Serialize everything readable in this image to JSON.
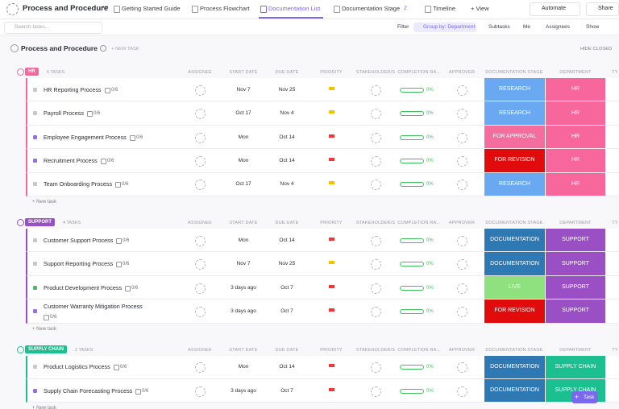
{
  "topbar": {
    "title": "Process and Procedure",
    "more": "•••",
    "tabs": [
      {
        "label": "Getting Started Guide"
      },
      {
        "label": "Process Flowchart"
      },
      {
        "label": "Documentation List",
        "active": true
      },
      {
        "label": "Documentation Stage",
        "badge": "2"
      },
      {
        "label": "Timeline"
      },
      {
        "label": "+ View"
      }
    ],
    "actions": [
      "Automate",
      "Share"
    ]
  },
  "toolbar": {
    "search": "Search tasks...",
    "buttons": [
      "Filter",
      "Group by: Department",
      "Subtasks",
      "Me",
      "Assignees",
      "Show"
    ]
  },
  "list": {
    "title": "Process and Procedure",
    "new_task": "+ NEW TASK",
    "hide_closed": "HIDE CLOSED",
    "columns": [
      "ASSIGNEE",
      "START DATE",
      "DUE DATE",
      "PRIORITY",
      "STAKEHOLDER/S",
      "COMPLETION RA...",
      "APPROVER",
      "DOCUMENTATION STAGE",
      "DEPARTMENT",
      "TY"
    ],
    "groups": [
      {
        "name": "HR",
        "count": "5 TASKS",
        "color": "#f7679b",
        "add_task": "+ New task",
        "tasks": [
          {
            "name": "HR Reporting Process",
            "subtasks": "0/6",
            "start": "Nov 7",
            "due": "Nov 25",
            "priority_color": "#f2c200",
            "completion": "0%",
            "stage": "RESEARCH",
            "stage_color": "#6aa8f2",
            "status_color": "#c8c8c8"
          },
          {
            "name": "Payroll Process",
            "subtasks": "0/6",
            "start": "Oct 17",
            "due": "Nov 4",
            "priority_color": "#f2c200",
            "completion": "0%",
            "stage": "RESEARCH",
            "stage_color": "#6aa8f2",
            "status_color": "#c8c8c8"
          },
          {
            "name": "Employee Engagement Process",
            "subtasks": "0/6",
            "start": "Mon",
            "due": "Oct 14",
            "priority_color": "#f03838",
            "completion": "0%",
            "stage": "FOR APPROVAL",
            "stage_color": "#f56d9c",
            "status_color": "#9b6cf0"
          },
          {
            "name": "Recruitment Process",
            "subtasks": "0/6",
            "start": "Mon",
            "due": "Oct 14",
            "priority_color": "#f03838",
            "completion": "0%",
            "stage": "FOR REVISION",
            "stage_color": "#e10b0b",
            "status_color": "#9b6cf0"
          },
          {
            "name": "Team Onboarding Process",
            "subtasks": "0/6",
            "start": "Oct 17",
            "due": "Nov 4",
            "priority_color": "#f2c200",
            "completion": "0%",
            "stage": "RESEARCH",
            "stage_color": "#6aa8f2",
            "status_color": "#c8c8c8"
          }
        ]
      },
      {
        "name": "SUPPORT",
        "count": "4 TASKS",
        "color": "#9b4fc4",
        "add_task": "+ New task",
        "tasks": [
          {
            "name": "Customer Support Process",
            "subtasks": "0/6",
            "start": "Mon",
            "due": "Oct 14",
            "priority_color": "#f03838",
            "completion": "0%",
            "stage": "DOCUMENTATION",
            "stage_color": "#2e79b3",
            "status_color": "#c8c8c8"
          },
          {
            "name": "Support Reporting Process",
            "subtasks": "0/6",
            "start": "Nov 7",
            "due": "Nov 25",
            "priority_color": "#f2c200",
            "completion": "0%",
            "stage": "DOCUMENTATION",
            "stage_color": "#2e79b3",
            "status_color": "#c8c8c8"
          },
          {
            "name": "Product Development Process",
            "subtasks": "0/6",
            "start": "3 days ago",
            "due": "Oct 7",
            "priority_color": "#f03838",
            "completion": "0%",
            "stage": "LIVE",
            "stage_color": "#8fe07f",
            "status_color": "#3cc25a"
          },
          {
            "name": "Customer Warranty Mitigation Process",
            "subtasks": "0/6",
            "start": "3 days ago",
            "due": "Oct 7",
            "priority_color": "#f03838",
            "completion": "0%",
            "stage": "FOR REVISION",
            "stage_color": "#e10b0b",
            "status_color": "#9b6cf0"
          }
        ]
      },
      {
        "name": "SUPPLY CHAIN",
        "count": "2 TASKS",
        "color": "#1cbf8f",
        "add_task": "+ New task",
        "tasks": [
          {
            "name": "Product Logistics Process",
            "subtasks": "0/6",
            "start": "Mon",
            "due": "Oct 14",
            "priority_color": "#f03838",
            "completion": "0%",
            "stage": "DOCUMENTATION",
            "stage_color": "#2e79b3",
            "status_color": "#c8c8c8"
          },
          {
            "name": "Supply Chain Forecasting Process",
            "subtasks": "0/6",
            "start": "3 days ago",
            "due": "Oct 7",
            "priority_color": "#f03838",
            "completion": "0%",
            "stage": "DOCUMENTATION",
            "stage_color": "#2e79b3",
            "status_color": "#9b6cf0"
          }
        ]
      }
    ]
  },
  "fab": "Task"
}
